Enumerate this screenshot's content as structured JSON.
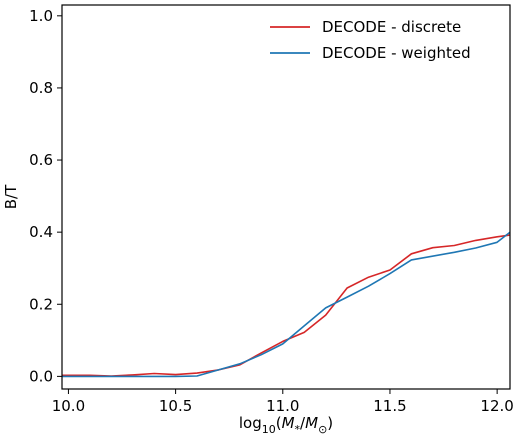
{
  "chart_data": {
    "type": "line",
    "xlabel": "log10(M*/M⊙)",
    "ylabel": "B/T",
    "xlim": [
      9.97,
      12.06
    ],
    "ylim": [
      -0.035,
      1.03
    ],
    "x_ticks": [
      "10.0",
      "10.5",
      "11.0",
      "11.5",
      "12.0"
    ],
    "y_ticks": [
      "0.0",
      "0.2",
      "0.4",
      "0.6",
      "0.8",
      "1.0"
    ],
    "legend_position": "top-right",
    "grid": false,
    "series": [
      {
        "name": "DECODE - discrete",
        "color": "#d62728",
        "x": [
          9.97,
          10.0,
          10.1,
          10.2,
          10.3,
          10.4,
          10.5,
          10.6,
          10.7,
          10.8,
          10.9,
          11.0,
          11.1,
          11.2,
          11.3,
          11.4,
          11.5,
          11.6,
          11.7,
          11.8,
          11.9,
          12.0,
          12.06
        ],
        "y": [
          0.003,
          0.003,
          0.003,
          0.001,
          0.004,
          0.008,
          0.005,
          0.009,
          0.018,
          0.032,
          0.065,
          0.097,
          0.122,
          0.17,
          0.245,
          0.275,
          0.295,
          0.34,
          0.357,
          0.363,
          0.377,
          0.387,
          0.392
        ]
      },
      {
        "name": "DECODE - weighted",
        "color": "#1f77b4",
        "x": [
          9.97,
          10.0,
          10.2,
          10.4,
          10.5,
          10.6,
          10.7,
          10.8,
          10.9,
          11.0,
          11.1,
          11.2,
          11.3,
          11.4,
          11.5,
          11.6,
          11.8,
          11.9,
          12.0,
          12.06
        ],
        "y": [
          0.0,
          0.0,
          0.0,
          0.0,
          0.0,
          0.001,
          0.018,
          0.035,
          0.06,
          0.09,
          0.14,
          0.19,
          0.22,
          0.25,
          0.285,
          0.323,
          0.344,
          0.356,
          0.372,
          0.4
        ]
      }
    ]
  }
}
